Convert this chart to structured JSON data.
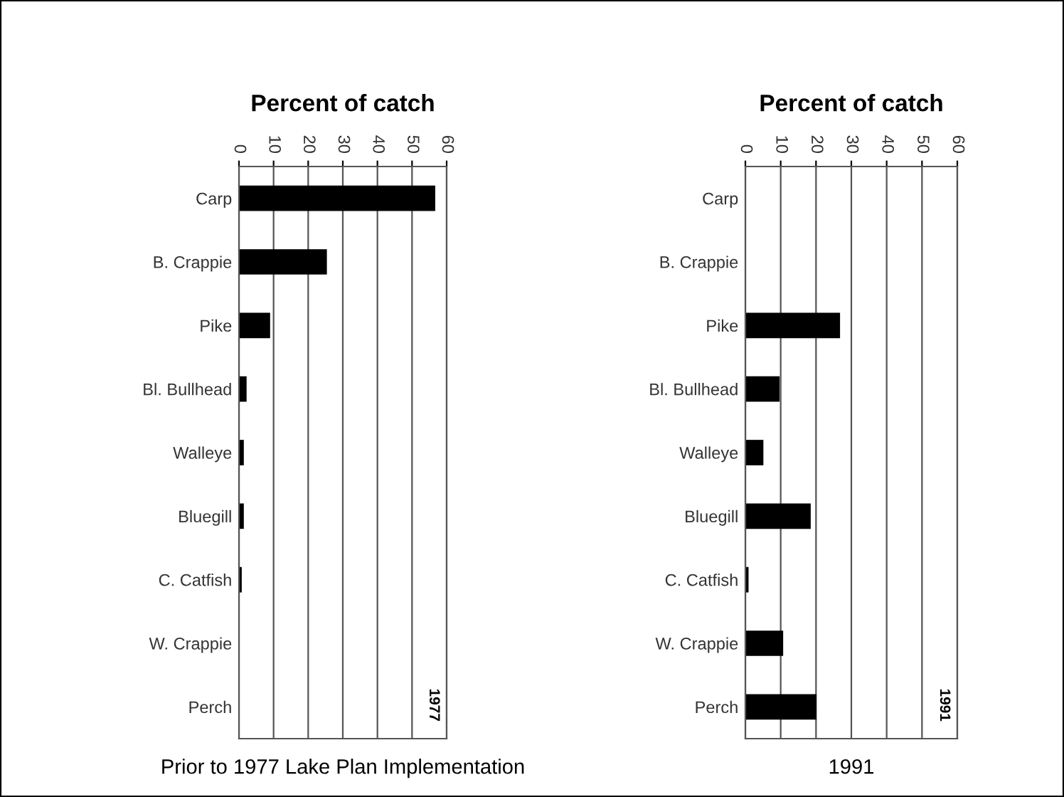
{
  "chart_data": [
    {
      "type": "bar",
      "orientation": "horizontal",
      "title": "Percent of catch",
      "categories": [
        "Carp",
        "B. Crappie",
        "Pike",
        "Bl. Bullhead",
        "Walleye",
        "Bluegill",
        "C. Catfish",
        "W. Crappie",
        "Perch"
      ],
      "values": [
        56.7,
        25.4,
        9.0,
        2.2,
        1.4,
        1.4,
        0.8,
        null,
        null
      ],
      "color": "#000000",
      "xlim": [
        0,
        60
      ],
      "xticks": [
        0,
        10,
        20,
        30,
        40,
        50,
        60
      ],
      "grid": "x",
      "annotations": [
        "1977",
        "Prior to 1977 Lake Plan Implementation"
      ]
    },
    {
      "type": "bar",
      "orientation": "horizontal",
      "title": "Percent of catch",
      "categories": [
        "Carp",
        "B. Crappie",
        "Pike",
        "Bl. Bullhead",
        "Walleye",
        "Bluegill",
        "C. Catfish",
        "W. Crappie",
        "Perch"
      ],
      "values": [
        null,
        0,
        26.8,
        9.7,
        5.1,
        18.5,
        0.9,
        10.7,
        20.1
      ],
      "color": "#000000",
      "xlim": [
        0,
        60
      ],
      "xticks": [
        0,
        10,
        20,
        30,
        40,
        50,
        60
      ],
      "grid": "x",
      "annotations": [
        "1991",
        "1991"
      ]
    }
  ]
}
